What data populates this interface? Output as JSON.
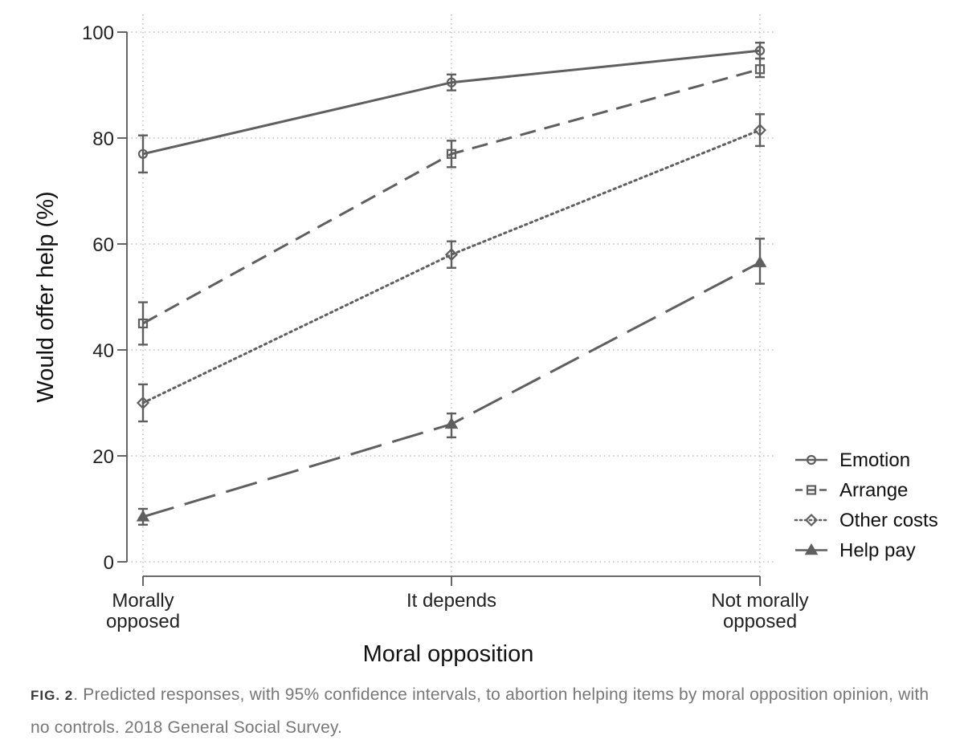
{
  "chart_data": {
    "type": "line",
    "title": "",
    "xlabel": "Moral opposition",
    "ylabel": "Would offer help (%)",
    "ylim": [
      0,
      100
    ],
    "yticks": [
      0,
      20,
      40,
      60,
      80,
      100
    ],
    "categories": [
      "Morally opposed",
      "It depends",
      "Not morally opposed"
    ],
    "category_lines": [
      [
        "Morally",
        "opposed"
      ],
      [
        "It depends"
      ],
      [
        "Not morally",
        "opposed"
      ]
    ],
    "grid": true,
    "legend_position": "right",
    "series": [
      {
        "name": "Emotion",
        "marker": "circle",
        "dash": "solid",
        "values": [
          77,
          90.5,
          96.5
        ],
        "ci_low": [
          73.5,
          89,
          95
        ],
        "ci_high": [
          80.5,
          92,
          98
        ]
      },
      {
        "name": "Arrange",
        "marker": "square",
        "dash": "dashed",
        "values": [
          45,
          77,
          93
        ],
        "ci_low": [
          41,
          74.5,
          91.5
        ],
        "ci_high": [
          49,
          79.5,
          95
        ]
      },
      {
        "name": "Other costs",
        "marker": "diamond",
        "dash": "dotted",
        "values": [
          30,
          58,
          81.5
        ],
        "ci_low": [
          26.5,
          55.5,
          78.5
        ],
        "ci_high": [
          33.5,
          60.5,
          84.5
        ]
      },
      {
        "name": "Help pay",
        "marker": "triangle",
        "dash": "longdash",
        "values": [
          8.5,
          26,
          56.5
        ],
        "ci_low": [
          7,
          23.5,
          52.5
        ],
        "ci_high": [
          10,
          28,
          61
        ]
      }
    ]
  },
  "caption": {
    "label": "FIG. 2",
    "text": ". Predicted responses, with 95% confidence intervals, to abortion helping items by moral opposition opinion, with no controls. 2018 General Social Survey."
  },
  "colors": {
    "series": "#5f5f5f",
    "grid": "#b5b5b5"
  }
}
